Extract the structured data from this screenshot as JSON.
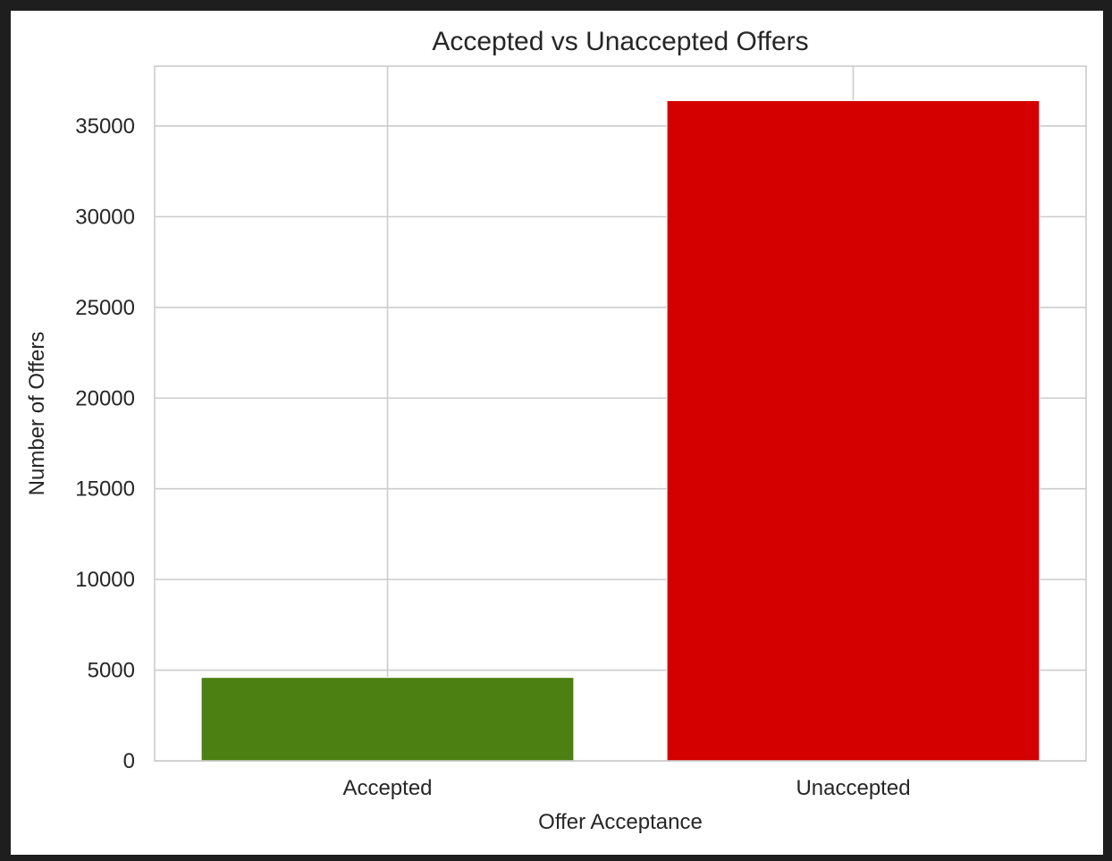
{
  "chart_data": {
    "type": "bar",
    "title": "Accepted vs Unaccepted Offers",
    "xlabel": "Offer Acceptance",
    "ylabel": "Number of Offers",
    "categories": [
      "Accepted",
      "Unaccepted"
    ],
    "values": [
      4600,
      36400
    ],
    "colors": [
      "#4c8012",
      "#d40000"
    ],
    "ylim": [
      0,
      38300
    ],
    "yticks": [
      0,
      5000,
      10000,
      15000,
      20000,
      25000,
      30000,
      35000
    ],
    "grid": true,
    "legend": "none"
  }
}
